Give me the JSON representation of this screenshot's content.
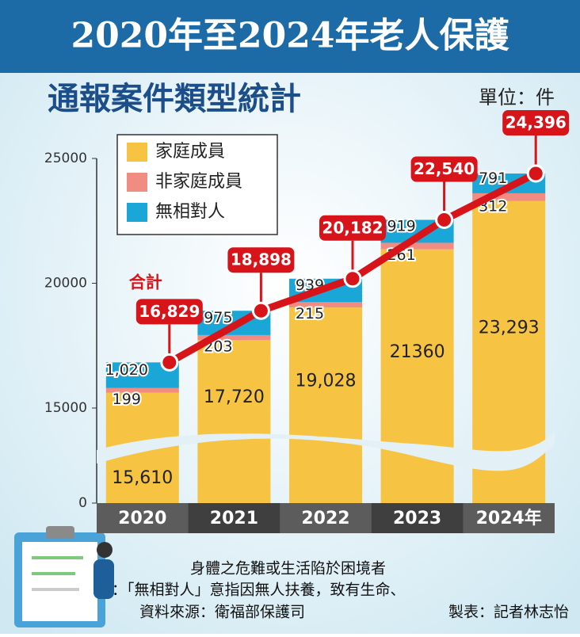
{
  "chart_data": {
    "type": "bar",
    "stacked": true,
    "title": "2020年至2024年老人保護",
    "subtitle": "通報案件類型統計",
    "unit": "單位：件",
    "categories": [
      "2020",
      "2021",
      "2022",
      "2023",
      "2024年"
    ],
    "series": [
      {
        "name": "家庭成員",
        "color": "#f6c343",
        "values": [
          15610,
          17720,
          19028,
          21360,
          23293
        ],
        "value_labels": [
          "15,610",
          "17,720",
          "19,028",
          "21360",
          "23,293"
        ]
      },
      {
        "name": "非家庭成員",
        "color": "#f08c82",
        "values": [
          199,
          203,
          215,
          261,
          312
        ]
      },
      {
        "name": "無相對人",
        "color": "#1ba6d8",
        "values": [
          1020,
          975,
          939,
          919,
          791
        ],
        "value_labels": [
          "1,020",
          "975",
          "939",
          "919",
          "791"
        ]
      }
    ],
    "total": {
      "name": "合計",
      "color": "#d7141a",
      "values": [
        16829,
        18898,
        20182,
        22540,
        24396
      ],
      "value_labels": [
        "16,829",
        "18,898",
        "20,182",
        "22,540",
        "24,396"
      ]
    },
    "ylim": [
      0,
      25000
    ],
    "yticks": [
      0,
      15000,
      20000,
      25000
    ],
    "notes": [
      "註：「無相對人」意指因無人扶養，致有生命、",
      "身體之危難或生活陷於困境者"
    ],
    "source": "資料來源：衛福部保護司",
    "credit": "製表：記者林志怡"
  }
}
